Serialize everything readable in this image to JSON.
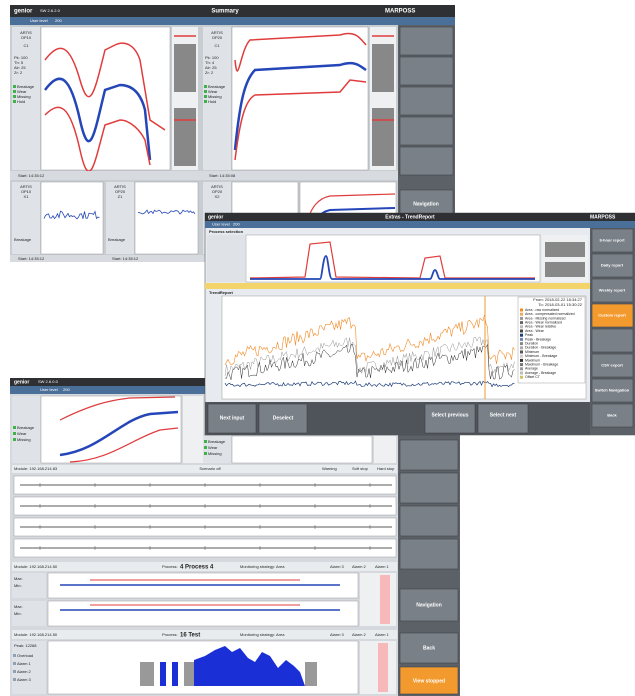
{
  "summary": {
    "brand": "genior",
    "version": "SW 2.6.2.0",
    "title": "Summary",
    "company": "MARPOSS",
    "user_level": "User level",
    "level": "200",
    "panels": [
      {
        "tool": "ARTIS",
        "op": "OP10",
        "channel": "C1",
        "stats": [
          "Pk: 100",
          "Th: 5",
          "Alr: 25",
          "Zr: 2"
        ],
        "alarms": [
          "Breakage",
          "Wear",
          "Missing",
          "Hold"
        ]
      },
      {
        "tool": "ARTIS",
        "op": "OP20",
        "channel": "C1",
        "stats": [
          "Pk: 100",
          "Th: 4",
          "Alr: 25",
          "Zr: 2"
        ],
        "alarms": [
          "Breakage",
          "Wear",
          "Missing",
          "Hold"
        ]
      }
    ],
    "small_panels": [
      {
        "tool": "ARTIS",
        "op": "OP10",
        "channel": "X1",
        "alarm": "Breakage"
      },
      {
        "tool": "ARTIS",
        "op": "OP20",
        "channel": "Z1",
        "alarm": "Breakage"
      },
      {
        "tool": "ARTIS",
        "op": "OP20",
        "channel": "X2",
        "alarm": "Breakage"
      }
    ],
    "status": [
      "Start: 14:35:12",
      "Start: 14:35:08",
      "Start: 14:35:12",
      "Start: 14:35:12"
    ],
    "navigation": "Navigation"
  },
  "trend": {
    "brand": "genior",
    "title": "Extras - TrendReport",
    "company": "MARPOSS",
    "user_level": "User level",
    "level": "200",
    "section_top": "Process selection",
    "section_trend": "TrendReport",
    "period": [
      "From: 2018-02-22  18:34:27",
      "To: 2018-03-01  15:30:22"
    ],
    "legend": [
      "Area - raw normalized",
      "Area - compensated normalized",
      "Area - Missing normalized",
      "Area - Wear normalized",
      "Area - Wear relative",
      "Area - Wear",
      "Peak",
      "Peak - Breakage",
      "Duration",
      "Duration - Breakage",
      "Minimum",
      "Minimum - Breakage",
      "Maximum",
      "Maximum - Breakage",
      "Average",
      "Average - Breakage",
      "Offset CT"
    ],
    "sidebar": [
      "8-hour report",
      "Daily report",
      "Weekly report",
      "Custom report",
      "CSV export",
      "Switch Navigation",
      "Back"
    ],
    "buttons": [
      "Next input",
      "Deselect",
      "Select previous",
      "Select next"
    ]
  },
  "process": {
    "brand": "genior",
    "version": "SW 2.6.0.0",
    "user_level": "User level",
    "level": "200",
    "alarms": [
      "Breakage",
      "Wear",
      "Missing"
    ],
    "modules": [
      {
        "module": "Module: 192.168.214.83",
        "process": "Scenario off",
        "legend": [
          "Warning",
          "Soft stop",
          "Hard stop"
        ]
      },
      {
        "module": "Module: 192.168.214.50",
        "process_label": "Process:",
        "process": "4 Process 4",
        "strategy": "Monitoring strategy: Area",
        "legend": [
          "Alarm 3",
          "Alarm 2",
          "Alarm 1"
        ],
        "rows": [
          "Max:",
          "Min:"
        ]
      },
      {
        "module": "Module: 192.168.214.50",
        "process_label": "Process:",
        "process": "16 Test",
        "strategy": "Monitoring strategy: Area",
        "legend": [
          "Alarm 3",
          "Alarm 2",
          "Alarm 1"
        ],
        "peak": "Peak: 12268",
        "alarms": [
          "Overload",
          "Alarm 1",
          "Alarm 2",
          "Alarm 3"
        ]
      }
    ],
    "sidebar": [
      "Navigation",
      "Back",
      "View stopped"
    ]
  }
}
